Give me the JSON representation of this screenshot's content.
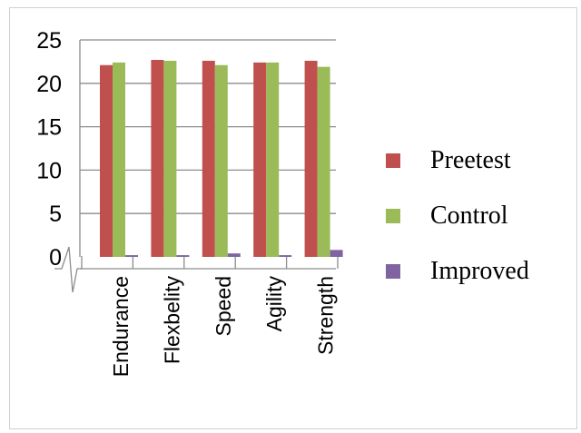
{
  "chart_data": {
    "type": "bar",
    "categories": [
      "Endurance",
      "Flexbelity",
      "Speed",
      "Agility",
      "Strength"
    ],
    "series": [
      {
        "name": "Preetest",
        "values": [
          22.1,
          22.7,
          22.6,
          22.4,
          22.6
        ],
        "color": "#c0504d"
      },
      {
        "name": "Control",
        "values": [
          22.4,
          22.6,
          22.1,
          22.4,
          21.9
        ],
        "color": "#9bbb59"
      },
      {
        "name": "Improved",
        "values": [
          0.2,
          0.2,
          0.4,
          0.2,
          0.8
        ],
        "color": "#8064a2"
      }
    ],
    "y_ticks": [
      "0",
      "5",
      "10",
      "15",
      "20",
      "25"
    ],
    "ylim": [
      0,
      25
    ],
    "legend_position": "right",
    "axis_break": true,
    "grid": true
  }
}
